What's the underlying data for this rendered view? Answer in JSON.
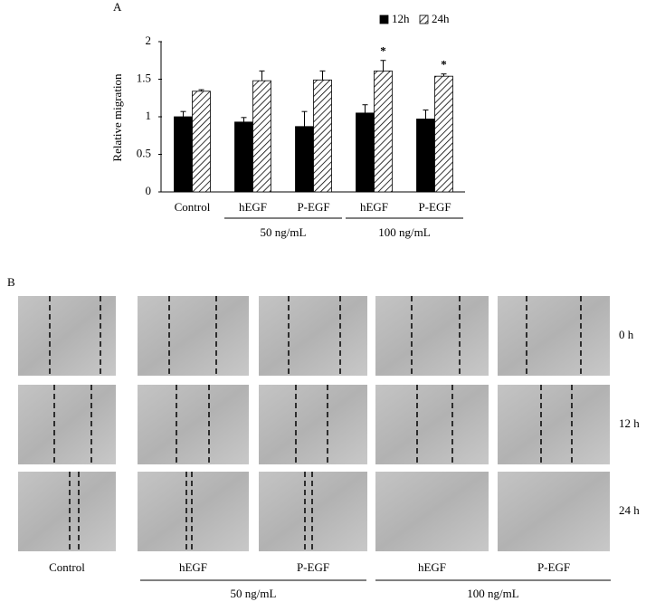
{
  "chart_data": {
    "type": "bar",
    "panel_label": "A",
    "y_label": "Relative migration",
    "categories": [
      "Control",
      "hEGF",
      "P-EGF",
      "hEGF",
      "P-EGF"
    ],
    "groups": [
      "50 ng/mL",
      "100 ng/mL"
    ],
    "series": [
      {
        "name": "12h",
        "color": "#000000",
        "values": [
          1.0,
          0.93,
          0.87,
          1.05,
          0.97
        ],
        "errors": [
          0.07,
          0.06,
          0.2,
          0.11,
          0.12
        ]
      },
      {
        "name": "24h",
        "color": "#000000",
        "hatch": true,
        "values": [
          1.34,
          1.48,
          1.49,
          1.61,
          1.54
        ],
        "errors": [
          0.02,
          0.13,
          0.12,
          0.14,
          0.03
        ],
        "markers": [
          null,
          null,
          null,
          "*",
          "*"
        ]
      }
    ],
    "ylim": [
      0,
      2
    ],
    "yticks": [
      0,
      0.5,
      1,
      1.5,
      2
    ],
    "grid": false
  },
  "panel_b": {
    "label": "B",
    "rows": [
      "0 h",
      "12 h",
      "24 h"
    ],
    "columns": [
      "Control",
      "hEGF",
      "P-EGF",
      "hEGF",
      "P-EGF"
    ],
    "groups": [
      "50 ng/mL",
      "100 ng/mL"
    ]
  }
}
